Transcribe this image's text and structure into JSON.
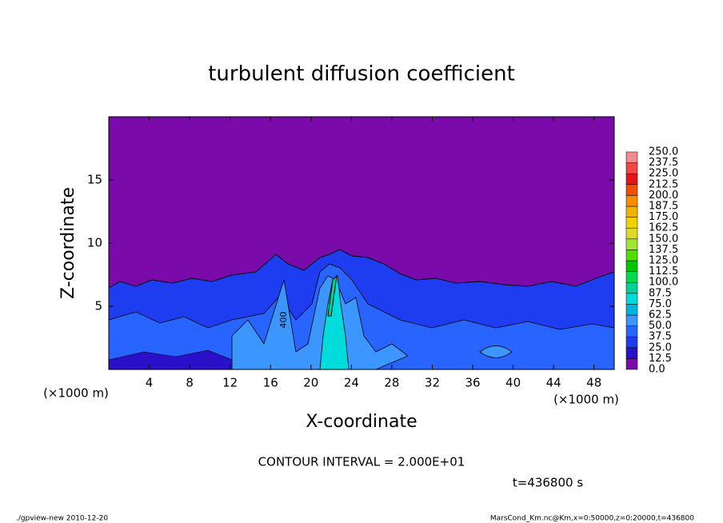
{
  "chart_data": {
    "type": "contour",
    "title": "turbulent diffusion coefficient",
    "xlabel": "X-coordinate",
    "ylabel": "Z-coordinate",
    "x_unit": "(×1000 m)",
    "xlim": [
      0,
      50
    ],
    "ylim": [
      0,
      20
    ],
    "xticks": [
      4,
      8,
      12,
      16,
      20,
      24,
      28,
      32,
      36,
      40,
      44,
      48
    ],
    "yticks": [
      5,
      10,
      15
    ],
    "contour_label": "400",
    "contour_interval": "CONTOUR INTERVAL = 2.000E+01",
    "time": "t=436800 s",
    "footer_left": "./gpview-new   2010-12-20",
    "footer_right": "MarsCond_Km.nc@Km,x=0:50000,z=0:20000,t=436800",
    "colorbar": {
      "levels": [
        {
          "value": 0,
          "label": "0.0"
        },
        {
          "value": 12.5,
          "label": "12.5"
        },
        {
          "value": 25,
          "label": "25.0"
        },
        {
          "value": 37.5,
          "label": "37.5"
        },
        {
          "value": 50,
          "label": "50.0"
        },
        {
          "value": 62.5,
          "label": "62.5"
        },
        {
          "value": 75,
          "label": "75.0"
        },
        {
          "value": 87.5,
          "label": "87.5"
        },
        {
          "value": 100,
          "label": "100.0"
        },
        {
          "value": 112.5,
          "label": "112.5"
        },
        {
          "value": 125,
          "label": "125.0"
        },
        {
          "value": 137.5,
          "label": "137.5"
        },
        {
          "value": 150,
          "label": "150.0"
        },
        {
          "value": 162.5,
          "label": "162.5"
        },
        {
          "value": 175,
          "label": "175.0"
        },
        {
          "value": 187.5,
          "label": "187.5"
        },
        {
          "value": 200,
          "label": "200.0"
        },
        {
          "value": 212.5,
          "label": "212.5"
        },
        {
          "value": 225,
          "label": "225.0"
        },
        {
          "value": 237.5,
          "label": "237.5"
        },
        {
          "value": 250,
          "label": "250.0"
        }
      ],
      "colors": [
        "#7a0aaa",
        "#2a10c8",
        "#1e3cf0",
        "#2864ff",
        "#3c96ff",
        "#00b4dc",
        "#00dcdc",
        "#00d296",
        "#00dc50",
        "#00c800",
        "#50e000",
        "#a0e632",
        "#dcdc28",
        "#f0d200",
        "#f0b400",
        "#fa8c00",
        "#f05000",
        "#e61414",
        "#f04646",
        "#f08c8c"
      ]
    }
  }
}
